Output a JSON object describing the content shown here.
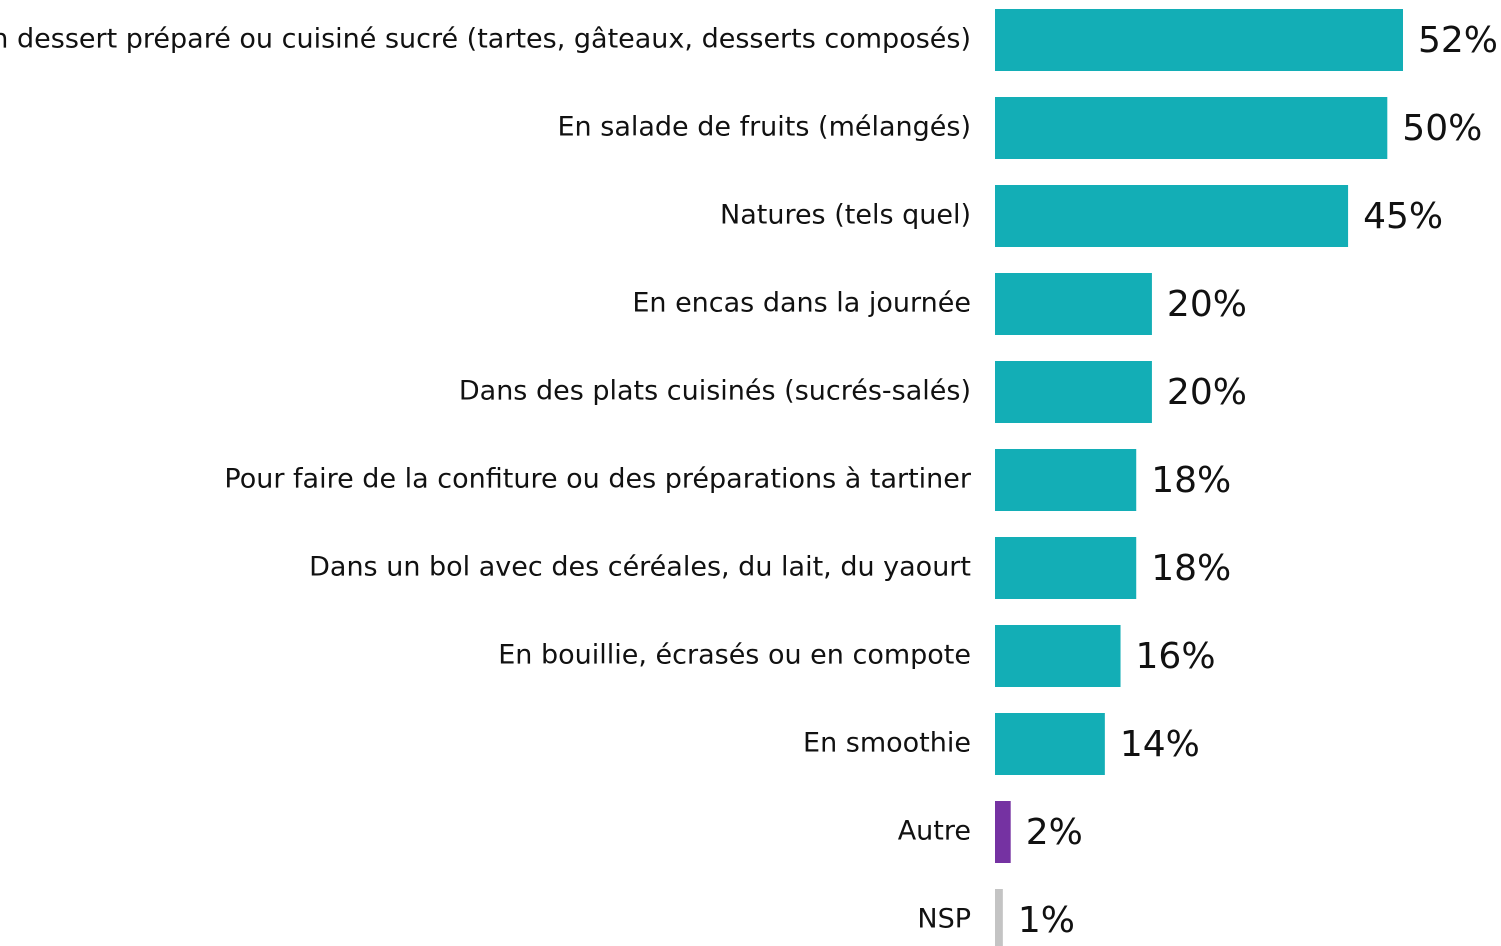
{
  "chart_data": {
    "type": "bar",
    "orientation": "horizontal",
    "categories": [
      "En dessert préparé ou cuisiné sucré (tartes, gâteaux, desserts composés)",
      "En salade de fruits (mélangés)",
      "Natures (tels quel)",
      "En encas dans la journée",
      "Dans des plats cuisinés (sucrés-salés)",
      "Pour faire de la confiture ou des préparations à tartiner",
      "Dans un bol avec des céréales, du lait, du yaourt",
      "En bouillie, écrasés ou en compote",
      "En smoothie",
      "Autre",
      "NSP"
    ],
    "values": [
      52,
      50,
      45,
      20,
      20,
      18,
      18,
      16,
      14,
      2,
      1
    ],
    "value_labels": [
      "52%",
      "50%",
      "45%",
      "20%",
      "20%",
      "18%",
      "18%",
      "16%",
      "14%",
      "2%",
      "1%"
    ],
    "colors": [
      "#13aeb6",
      "#13aeb6",
      "#13aeb6",
      "#13aeb6",
      "#13aeb6",
      "#13aeb6",
      "#13aeb6",
      "#13aeb6",
      "#13aeb6",
      "#7532a2",
      "#c4c4c4"
    ]
  }
}
